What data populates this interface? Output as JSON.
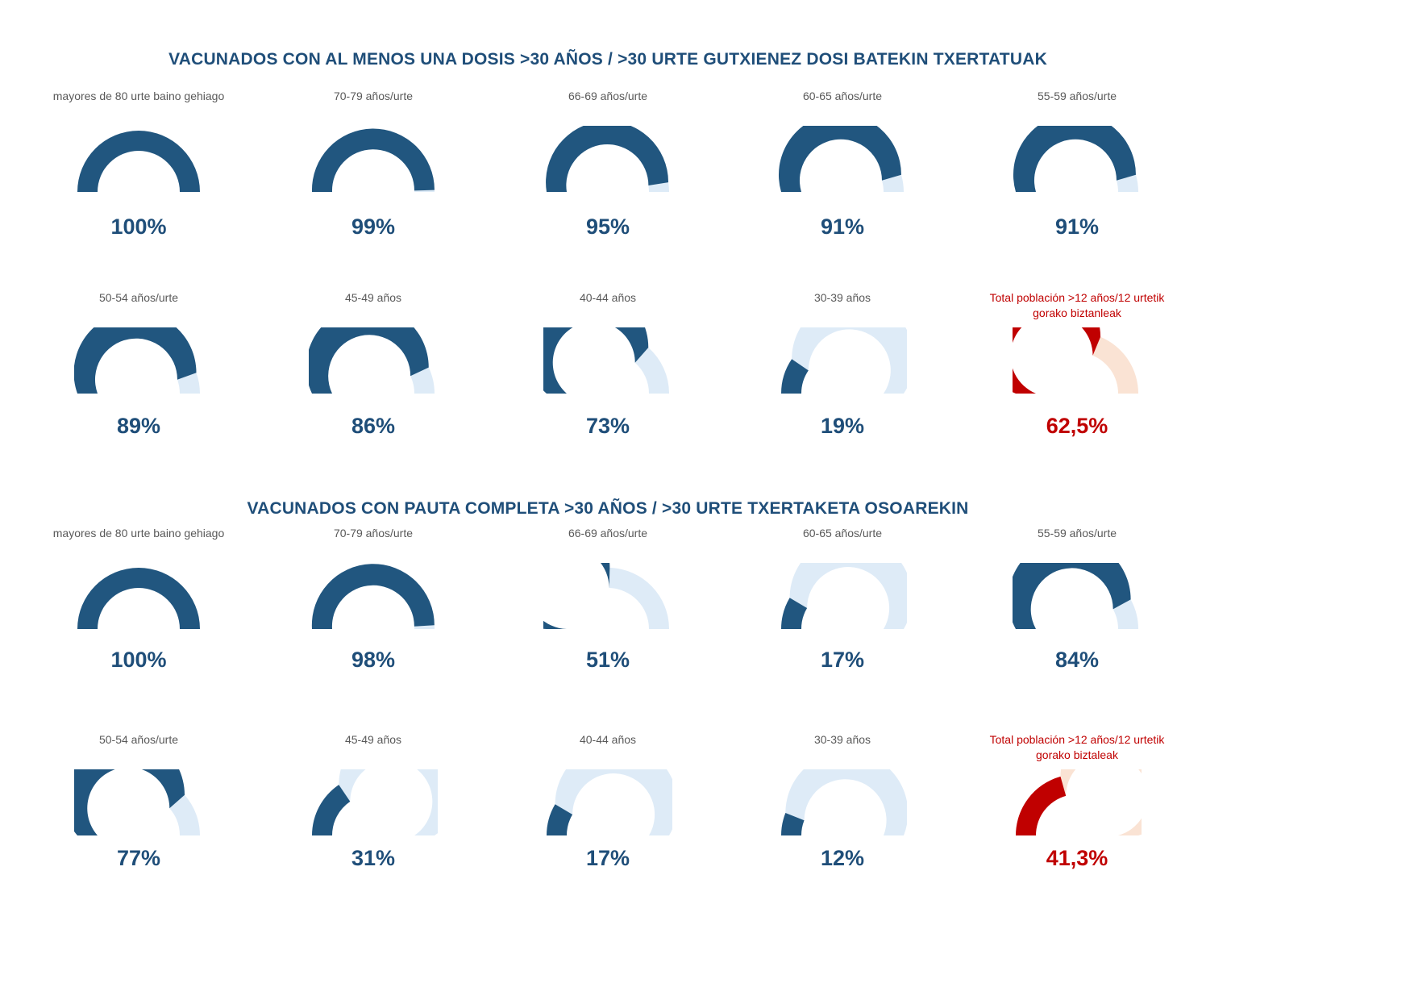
{
  "page": {
    "background": "#FFFFFF"
  },
  "chart_data": {
    "type": "gauge",
    "gauge_style": "semicircle-donut",
    "unit": "%",
    "legend_position": "none",
    "grid": false,
    "colors": {
      "fill_blue": "#21567F",
      "track_blue": "#DEEBF7",
      "fill_red": "#C00000",
      "track_red": "#FAE3D4",
      "value_text_blue": "#1F4E79",
      "value_text_red": "#C00000",
      "label_gray": "#595959",
      "title_blue": "#1F4E79"
    },
    "sections": [
      {
        "title": "VACUNADOS CON AL MENOS UNA DOSIS >30 AÑOS / >30 URTE GUTXIENEZ DOSI BATEKIN TXERTATUAK",
        "gauges": [
          {
            "label": "mayores de 80 urte baino gehiago",
            "value": 100,
            "display": "100%",
            "variant": "blue"
          },
          {
            "label": "70-79 años/urte",
            "value": 99,
            "display": "99%",
            "variant": "blue"
          },
          {
            "label": "66-69 años/urte",
            "value": 95,
            "display": "95%",
            "variant": "blue"
          },
          {
            "label": "60-65 años/urte",
            "value": 91,
            "display": "91%",
            "variant": "blue"
          },
          {
            "label": "55-59 años/urte",
            "value": 91,
            "display": "91%",
            "variant": "blue"
          },
          {
            "label": "50-54 años/urte",
            "value": 89,
            "display": "89%",
            "variant": "blue"
          },
          {
            "label": "45-49 años",
            "value": 86,
            "display": "86%",
            "variant": "blue"
          },
          {
            "label": "40-44 años",
            "value": 73,
            "display": "73%",
            "variant": "blue"
          },
          {
            "label": "30-39 años",
            "value": 19,
            "display": "19%",
            "variant": "blue"
          },
          {
            "label": "Total población >12 años/12 urtetik gorako biztanleak",
            "value": 62.5,
            "display": "62,5%",
            "variant": "red"
          }
        ]
      },
      {
        "title": "VACUNADOS CON PAUTA COMPLETA >30 AÑOS / >30 URTE TXERTAKETA OSOAREKIN",
        "gauges": [
          {
            "label": "mayores de 80 urte baino gehiago",
            "value": 100,
            "display": "100%",
            "variant": "blue"
          },
          {
            "label": "70-79 años/urte",
            "value": 98,
            "display": "98%",
            "variant": "blue"
          },
          {
            "label": "66-69 años/urte",
            "value": 51,
            "display": "51%",
            "variant": "blue"
          },
          {
            "label": "60-65 años/urte",
            "value": 17,
            "display": "17%",
            "variant": "blue"
          },
          {
            "label": "55-59 años/urte",
            "value": 84,
            "display": "84%",
            "variant": "blue"
          },
          {
            "label": "50-54 años/urte",
            "value": 77,
            "display": "77%",
            "variant": "blue"
          },
          {
            "label": "45-49 años",
            "value": 31,
            "display": "31%",
            "variant": "blue"
          },
          {
            "label": "40-44 años",
            "value": 17,
            "display": "17%",
            "variant": "blue"
          },
          {
            "label": "30-39 años",
            "value": 12,
            "display": "12%",
            "variant": "blue"
          },
          {
            "label": "Total población >12 años/12 urtetik gorako biztaleak",
            "value": 41.3,
            "display": "41,3%",
            "variant": "red"
          }
        ]
      }
    ]
  }
}
